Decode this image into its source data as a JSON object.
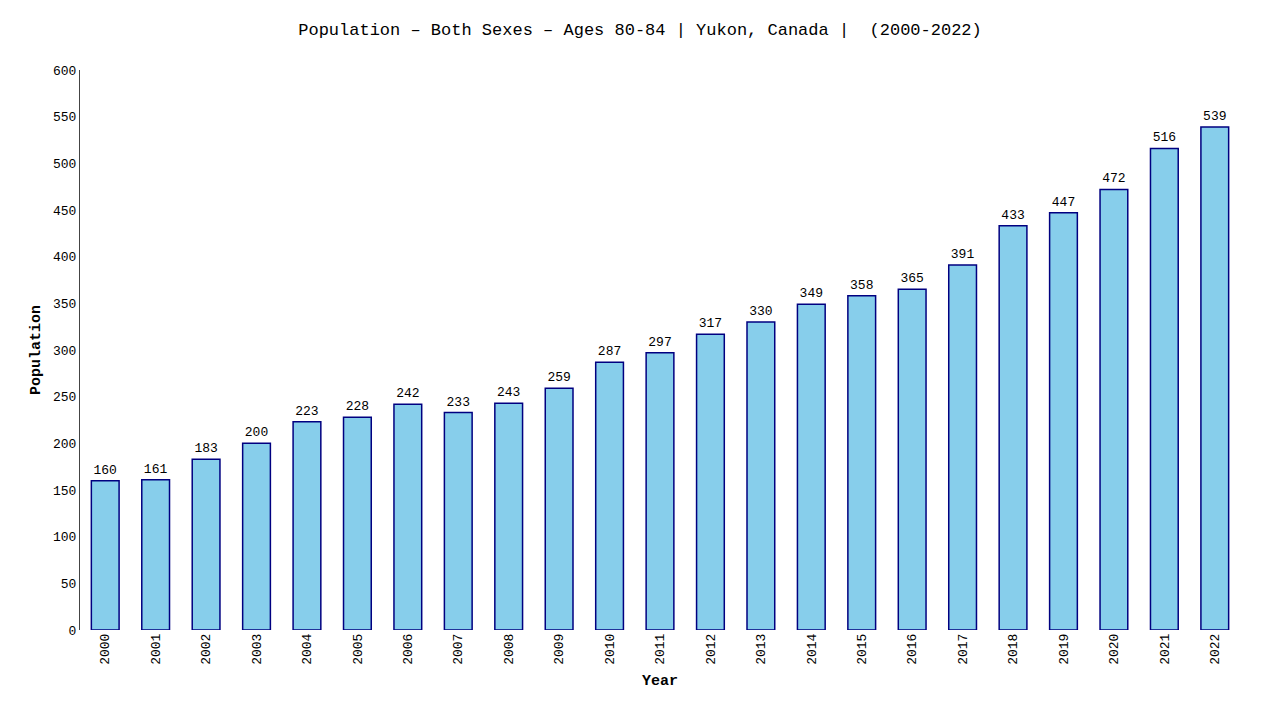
{
  "chart_data": {
    "type": "bar",
    "title": "Population – Both Sexes – Ages 80-84 | Yukon, Canada |  (2000-2022)",
    "x_label": "Year",
    "y_label": "Population",
    "categories": [
      "2000",
      "2001",
      "2002",
      "2003",
      "2004",
      "2005",
      "2006",
      "2007",
      "2008",
      "2009",
      "2010",
      "2011",
      "2012",
      "2013",
      "2014",
      "2015",
      "2016",
      "2017",
      "2018",
      "2019",
      "2020",
      "2021",
      "2022"
    ],
    "values": [
      160,
      161,
      183,
      200,
      223,
      228,
      242,
      233,
      243,
      259,
      287,
      297,
      317,
      330,
      349,
      358,
      365,
      391,
      433,
      447,
      472,
      516,
      539
    ],
    "color": "#87ceeb",
    "ylim": [
      0,
      600
    ],
    "yticks": [
      0,
      50,
      100,
      150,
      200,
      250,
      300,
      350,
      400,
      450,
      500,
      550,
      600
    ],
    "grid": false,
    "data_labels": true
  }
}
